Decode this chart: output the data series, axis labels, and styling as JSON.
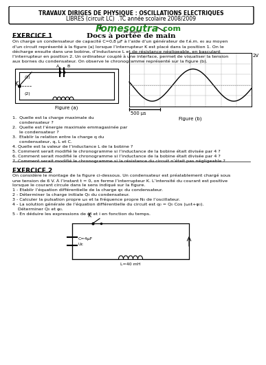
{
  "title_line1": "TRAVAUX DIRIGES DE PHYSIQUE : OSCILLATIONS ELECTRIQUES",
  "title_line2": "LIBRES (circuit LC)  .TC année scolaire 2008/2009",
  "logo_main": "Fomesoutra",
  "logo_dot_com": ".com",
  "logo_sub": "et aussi...",
  "subtitle": "Docs à portée de main",
  "exercice1": "EXERCICE 1",
  "para1": [
    "On charge un condensateur de capacité C=0,8 μF à l’aide d’un générateur de f.é.m. e₀ au moyen",
    "d’un circuit représenté à la figure (a) lorsque l’interrupteur K est placé dans la position 1. On le",
    "décharge ensuite dans une bobine, d’inductance L et de résistance négligeable, en basculant",
    "l’interrupteur en position 2. Un ordinateur couplé à une interface, permet de visualiser la tension",
    "aux bornes du condensateur. On observe le chronogramme représenté sur la figure (b)."
  ],
  "fig_a_label": "Figure (a)",
  "fig_b_label": "Figure (b)",
  "scale_label": "500 μs",
  "voltage_label": "2V",
  "questions1": [
    "1.  Quelle est la charge maximale du",
    "     condensateur ?",
    "2.  Quelle est l’énergie maximale emmagasinée par",
    "     le condensateur ?",
    "3.  Etablir la relation entre la charge q du",
    "     condensateur, q, L et C.",
    "4. Quelle est la valeur de l’inductance L de la bobine ?",
    "5. Comment serait modifié le chronogramme si l’inductance de la bobine était divisée par 4 ?",
    "6. Comment serait modifié le chronogramme si l’inductance de la bobine était divisée par 4 ?",
    "7. Comment serait modifié le chronogramme si la résistance du circuit n’était pas négligeable ?"
  ],
  "exercice2": "EXERCICE 2",
  "para2": [
    "On considère le montage de la figure ci-dessous. Un condensateur est préalablement chargé sous",
    "une tension de 6 V. À l’instant t = 0, on ferme l’interrupteur K. L’intensité du courant est positive",
    "lorsque le courant circule dans le sens indiqué sur la figure.",
    "1 - Etablir l’équation différentielle de la charge qc du condensateur.",
    "2 - Déterminer la charge initiale Q₀ du condensateur.",
    "3 - Calculer la pulsation propre ω₀ et la fréquence propre N₀ de l’oscillateur.",
    "4 - La solution générale de l’équation différentielle du circuit est q₀ = Q₀ Cos (ω₀t+φ₀).",
    "    Déterminer Q₀ et φ₀.",
    "5 - En déduire les expressions de q₀ et i en fonction du temps."
  ],
  "cap2_label": "C=4μF",
  "ind2_label": "L=40 mH",
  "uc2_label": "Uc",
  "background_color": "#ffffff",
  "green_color": "#228B22",
  "text_color": "#000000"
}
